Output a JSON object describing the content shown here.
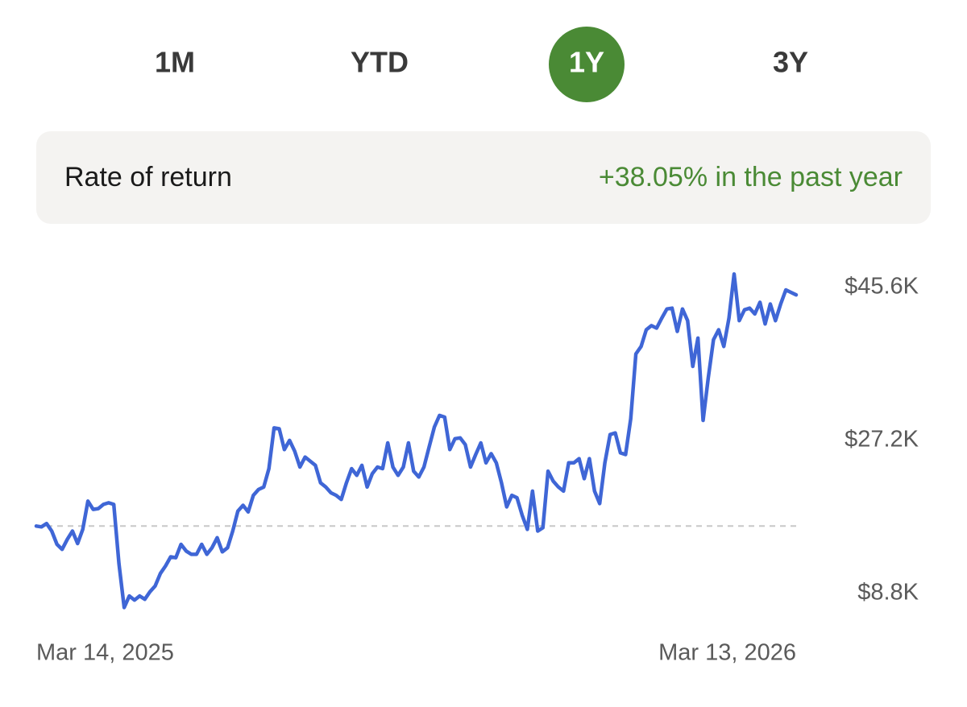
{
  "tabs": [
    "1M",
    "YTD",
    "1Y",
    "3Y"
  ],
  "selected_tab_index": 2,
  "rate_of_return": {
    "label": "Rate of return",
    "value_text": "+38.05% in the past year"
  },
  "chart_data": {
    "type": "line",
    "categories": [
      "Mar 14, 2025",
      null,
      null,
      null,
      null,
      null,
      null,
      null,
      null,
      null,
      null,
      null,
      null,
      null,
      null,
      null,
      null,
      null,
      null,
      null,
      null,
      null,
      null,
      null,
      null,
      null,
      null,
      null,
      null,
      null,
      null,
      null,
      null,
      null,
      null,
      null,
      null,
      null,
      null,
      null,
      null,
      null,
      null,
      null,
      null,
      null,
      null,
      null,
      null,
      null,
      null,
      null,
      null,
      null,
      null,
      null,
      null,
      null,
      null,
      null,
      null,
      null,
      null,
      null,
      null,
      null,
      null,
      null,
      null,
      null,
      null,
      null,
      null,
      null,
      null,
      null,
      null,
      null,
      null,
      null,
      null,
      null,
      null,
      null,
      null,
      null,
      null,
      null,
      null,
      null,
      null,
      null,
      null,
      null,
      null,
      null,
      null,
      null,
      null,
      null,
      null,
      null,
      null,
      null,
      null,
      null,
      null,
      null,
      null,
      null,
      null,
      null,
      null,
      null,
      null,
      null,
      null,
      null,
      null,
      null,
      null,
      null,
      null,
      null,
      null,
      null,
      null,
      null,
      null,
      null,
      null,
      null,
      null,
      null,
      null,
      null,
      null,
      null,
      null,
      null,
      null,
      null,
      null,
      null,
      null,
      null,
      null,
      "Mar 13, 2026"
    ],
    "series": [
      {
        "color": "#3f66d6",
        "values": [
          16900,
          16800,
          17200,
          16300,
          14700,
          14100,
          15300,
          16300,
          14800,
          16500,
          19900,
          18900,
          19000,
          19500,
          19700,
          19500,
          12400,
          7100,
          8500,
          8000,
          8500,
          8100,
          9000,
          9700,
          11200,
          12100,
          13200,
          13100,
          14700,
          13900,
          13500,
          13500,
          14700,
          13500,
          14300,
          15500,
          13800,
          14300,
          16300,
          18700,
          19400,
          18600,
          20600,
          21300,
          21600,
          23800,
          28700,
          28600,
          26100,
          27200,
          25900,
          24000,
          25200,
          24700,
          24200,
          22100,
          21600,
          20900,
          20600,
          20100,
          22100,
          23800,
          23000,
          24200,
          21600,
          23200,
          24000,
          23800,
          26900,
          24000,
          23000,
          24000,
          26900,
          23500,
          22800,
          24000,
          26400,
          28800,
          30200,
          30000,
          26100,
          27400,
          27500,
          26700,
          24000,
          25500,
          26900,
          24500,
          25600,
          24500,
          22100,
          19200,
          20600,
          20300,
          18200,
          16500,
          21100,
          16300,
          16700,
          23500,
          22300,
          21600,
          21100,
          24500,
          24500,
          25000,
          22600,
          25000,
          21100,
          19600,
          24500,
          27900,
          28100,
          25700,
          25500,
          29800,
          37600,
          38500,
          40500,
          41000,
          40700,
          41900,
          43000,
          43100,
          40300,
          43000,
          41600,
          36100,
          39500,
          29600,
          34700,
          39300,
          40500,
          38500,
          41900,
          47200,
          41600,
          42900,
          43100,
          42400,
          43800,
          41200,
          43600,
          41600,
          43600,
          45300,
          45000,
          44700
        ]
      }
    ],
    "ylim": [
      6570,
      48200
    ],
    "yticks": [
      {
        "value": 8800,
        "label": "$8.8K"
      },
      {
        "value": 27200,
        "label": "$27.2K"
      },
      {
        "value": 45600,
        "label": "$45.6K"
      }
    ],
    "baseline": 16900,
    "baseline_color": "#c8c8c8",
    "grid": false
  }
}
